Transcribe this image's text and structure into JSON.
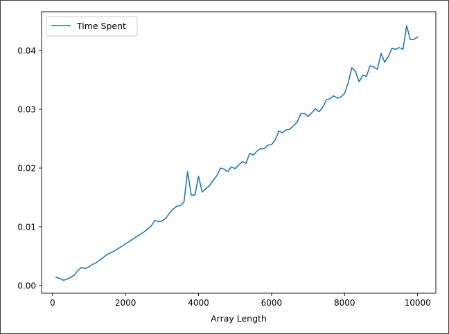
{
  "chart_data": {
    "type": "line",
    "title": "",
    "xlabel": "Array Length",
    "ylabel": "",
    "xlim": [
      -300,
      10500
    ],
    "ylim": [
      -0.0013,
      0.0466
    ],
    "xticks": [
      0,
      2000,
      4000,
      6000,
      8000,
      10000
    ],
    "xtick_labels": [
      "0",
      "2000",
      "4000",
      "6000",
      "8000",
      "10000"
    ],
    "yticks": [
      0.0,
      0.01,
      0.02,
      0.03,
      0.04
    ],
    "ytick_labels": [
      "0.00",
      "0.01",
      "0.02",
      "0.03",
      "0.04"
    ],
    "grid": false,
    "legend_position": "top-left",
    "series": [
      {
        "name": "Time Spent",
        "color": "#1f77b4",
        "x": [
          100,
          200,
          300,
          400,
          500,
          600,
          700,
          800,
          900,
          1000,
          1100,
          1200,
          1300,
          1400,
          1500,
          1600,
          1700,
          1800,
          1900,
          2000,
          2100,
          2200,
          2300,
          2400,
          2500,
          2600,
          2700,
          2800,
          2900,
          3000,
          3100,
          3200,
          3300,
          3400,
          3500,
          3600,
          3700,
          3800,
          3900,
          4000,
          4100,
          4200,
          4300,
          4400,
          4500,
          4600,
          4700,
          4800,
          4900,
          5000,
          5100,
          5200,
          5300,
          5400,
          5500,
          5600,
          5700,
          5800,
          5900,
          6000,
          6100,
          6200,
          6300,
          6400,
          6500,
          6600,
          6700,
          6800,
          6900,
          7000,
          7100,
          7200,
          7300,
          7400,
          7500,
          7600,
          7700,
          7800,
          7900,
          8000,
          8100,
          8200,
          8300,
          8400,
          8500,
          8600,
          8700,
          8800,
          8900,
          9000,
          9100,
          9200,
          9300,
          9400,
          9500,
          9600,
          9700,
          9800,
          9900,
          10000
        ],
        "y": [
          0.0014,
          0.0012,
          0.0009,
          0.0011,
          0.0014,
          0.0018,
          0.0026,
          0.0031,
          0.0029,
          0.0032,
          0.0036,
          0.0039,
          0.0044,
          0.0048,
          0.0053,
          0.0056,
          0.0059,
          0.0063,
          0.0067,
          0.0071,
          0.0075,
          0.0079,
          0.0083,
          0.0087,
          0.0091,
          0.0096,
          0.0101,
          0.0111,
          0.0109,
          0.011,
          0.0114,
          0.0123,
          0.013,
          0.0135,
          0.0136,
          0.0142,
          0.0194,
          0.0154,
          0.0154,
          0.0186,
          0.0159,
          0.0165,
          0.017,
          0.0179,
          0.0187,
          0.02,
          0.0198,
          0.0194,
          0.0202,
          0.0199,
          0.0205,
          0.0211,
          0.0208,
          0.0225,
          0.0222,
          0.0229,
          0.0233,
          0.0233,
          0.0239,
          0.024,
          0.0248,
          0.0263,
          0.026,
          0.0265,
          0.0266,
          0.0272,
          0.0278,
          0.0292,
          0.0293,
          0.0288,
          0.0294,
          0.0301,
          0.0296,
          0.0303,
          0.0316,
          0.0318,
          0.0323,
          0.0319,
          0.0321,
          0.0327,
          0.0345,
          0.0371,
          0.0364,
          0.0347,
          0.0358,
          0.0356,
          0.0374,
          0.0372,
          0.0368,
          0.0395,
          0.038,
          0.039,
          0.0404,
          0.0402,
          0.0405,
          0.0402,
          0.0442,
          0.0419,
          0.0419,
          0.0423
        ]
      }
    ]
  }
}
